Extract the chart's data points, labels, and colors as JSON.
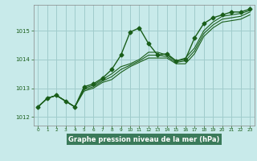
{
  "title": "Graphe pression niveau de la mer (hPa)",
  "bg_color": "#c8eaea",
  "grid_color": "#a0cccc",
  "line_color": "#1a5e1a",
  "xlabel_bg": "#3a7a5a",
  "xlabel_fg": "#ffffff",
  "xlim": [
    -0.5,
    23.5
  ],
  "ylim": [
    1011.7,
    1015.9
  ],
  "yticks": [
    1012,
    1013,
    1014,
    1015
  ],
  "xticks": [
    0,
    1,
    2,
    3,
    4,
    5,
    6,
    7,
    8,
    9,
    10,
    11,
    12,
    13,
    14,
    15,
    16,
    17,
    18,
    19,
    20,
    21,
    22,
    23
  ],
  "series": [
    [
      1012.35,
      1012.65,
      1012.75,
      1012.55,
      1012.35,
      1013.05,
      1013.15,
      1013.35,
      1013.65,
      1014.15,
      1014.95,
      1015.1,
      1014.55,
      1014.15,
      1014.2,
      1013.95,
      1014.0,
      1014.75,
      1015.25,
      1015.45,
      1015.55,
      1015.65,
      1015.65,
      1015.75
    ],
    [
      1012.35,
      1012.65,
      1012.75,
      1012.55,
      1012.35,
      1013.0,
      1013.1,
      1013.3,
      1013.5,
      1013.75,
      1013.85,
      1014.0,
      1014.25,
      1014.25,
      1014.15,
      1013.95,
      1014.05,
      1014.4,
      1015.0,
      1015.3,
      1015.5,
      1015.55,
      1015.6,
      1015.7
    ],
    [
      1012.35,
      1012.65,
      1012.75,
      1012.55,
      1012.35,
      1012.95,
      1013.05,
      1013.25,
      1013.4,
      1013.65,
      1013.8,
      1013.95,
      1014.15,
      1014.15,
      1014.1,
      1013.9,
      1013.95,
      1014.3,
      1014.9,
      1015.2,
      1015.4,
      1015.45,
      1015.5,
      1015.65
    ],
    [
      1012.35,
      1012.65,
      1012.75,
      1012.55,
      1012.35,
      1012.9,
      1013.0,
      1013.2,
      1013.3,
      1013.55,
      1013.75,
      1013.9,
      1014.05,
      1014.05,
      1014.05,
      1013.85,
      1013.85,
      1014.2,
      1014.8,
      1015.1,
      1015.3,
      1015.35,
      1015.4,
      1015.55
    ]
  ],
  "marker_series": 0,
  "marker": "D",
  "marker_size": 2.5,
  "linewidth_main": 1.0,
  "linewidth_other": 0.8
}
